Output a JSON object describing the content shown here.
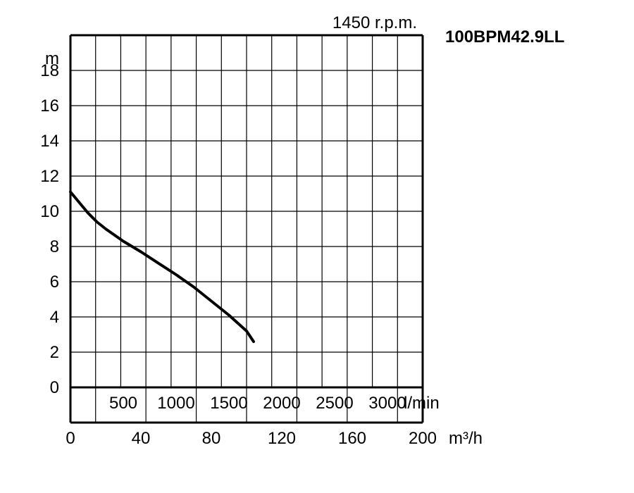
{
  "chart_data": {
    "type": "line",
    "title": "100BPM42.9LL",
    "subtitle": "1450 r.p.m.",
    "ylabel": "m",
    "xlabel": "m³/h",
    "xlabel_secondary": "l/min",
    "xlim": [
      0,
      200
    ],
    "ylim": [
      0,
      18
    ],
    "grid": true,
    "x_ticks": [
      0,
      40,
      80,
      120,
      160,
      200
    ],
    "y_ticks": [
      0,
      2,
      4,
      6,
      8,
      10,
      12,
      14,
      16,
      18
    ],
    "secondary_ticks": [
      500,
      1000,
      1500,
      2000,
      2500,
      3000
    ],
    "series": [
      {
        "x": [
          0,
          5,
          10,
          15,
          20,
          25,
          30,
          40,
          50,
          60,
          70,
          80,
          90,
          100,
          104
        ],
        "y": [
          11.1,
          10.5,
          9.9,
          9.4,
          9.0,
          8.65,
          8.3,
          7.7,
          7.05,
          6.4,
          5.7,
          4.9,
          4.1,
          3.2,
          2.6
        ]
      }
    ]
  }
}
